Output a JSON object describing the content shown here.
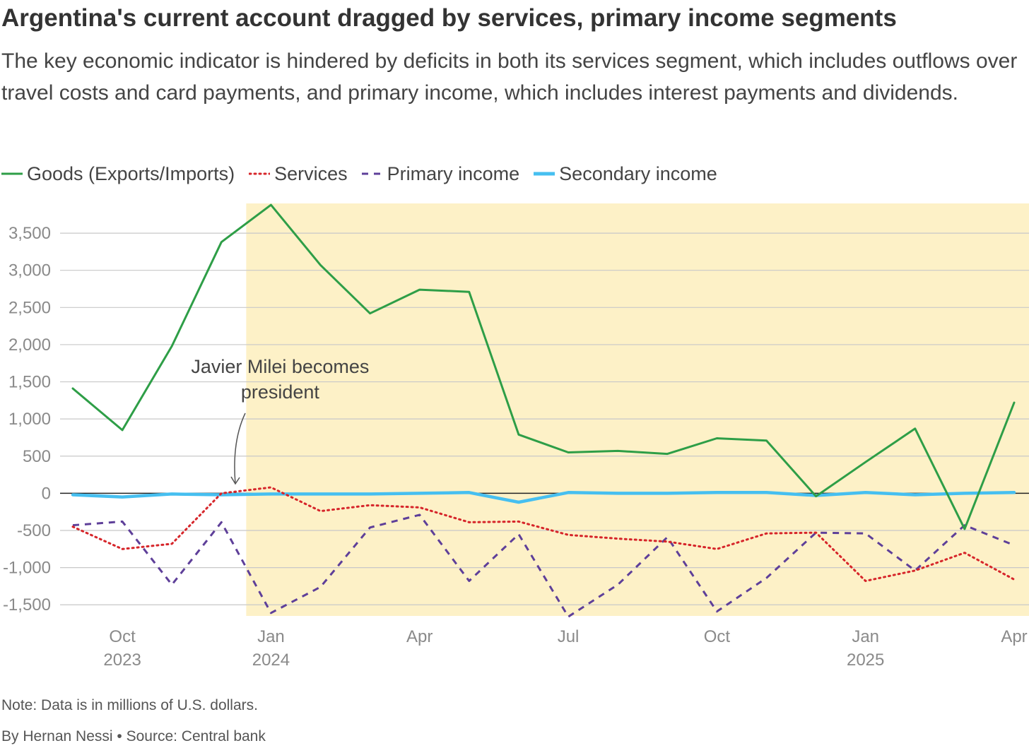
{
  "title": "Argentina's current account dragged by services, primary income segments",
  "subtitle": "The key economic indicator is hindered by deficits in both its services segment, which includes outflows over travel costs and card payments, and primary income, which includes interest payments and dividends.",
  "note": "Note: Data is in millions of U.S. dollars.",
  "byline": "By Hernan Nessi • Source: Central bank",
  "colors": {
    "goods": "#2e9e47",
    "services": "#d6252a",
    "primary": "#5e3f99",
    "secondary": "#46bff0",
    "highlight": "#fdf1c7",
    "grid": "#c8c8c8"
  },
  "chart_data": {
    "type": "line",
    "x": [
      "2023-09",
      "2023-10",
      "2023-11",
      "2023-12",
      "2024-01",
      "2024-02",
      "2024-03",
      "2024-04",
      "2024-05",
      "2024-06",
      "2024-07",
      "2024-08",
      "2024-09",
      "2024-10",
      "2024-11",
      "2024-12",
      "2025-01",
      "2025-02",
      "2025-03",
      "2025-04"
    ],
    "ylim": [
      -1650,
      3900
    ],
    "yticks": [
      -1500,
      -1000,
      -500,
      0,
      500,
      1000,
      1500,
      2000,
      2500,
      3000,
      3500
    ],
    "ytick_labels": [
      "-1,500",
      "-1,000",
      "-500",
      "0",
      "500",
      "1,000",
      "1,500",
      "2,000",
      "2,500",
      "3,000",
      "3,500"
    ],
    "xticks": [
      {
        "x": "2023-10",
        "month": "Oct",
        "year": "2023"
      },
      {
        "x": "2024-01",
        "month": "Jan",
        "year": "2024"
      },
      {
        "x": "2024-04",
        "month": "Apr",
        "year": ""
      },
      {
        "x": "2024-07",
        "month": "Jul",
        "year": ""
      },
      {
        "x": "2024-10",
        "month": "Oct",
        "year": ""
      },
      {
        "x": "2025-01",
        "month": "Jan",
        "year": "2025"
      },
      {
        "x": "2025-04",
        "month": "Apr",
        "year": ""
      }
    ],
    "highlight_from": "2023-12",
    "grid": true,
    "legend_position": "top-left",
    "series": [
      {
        "key": "goods",
        "name": "Goods (Exports/Imports)",
        "style": "solid",
        "values": [
          1410,
          850,
          1980,
          3380,
          3880,
          3070,
          2420,
          2740,
          2710,
          790,
          550,
          570,
          530,
          740,
          710,
          -40,
          420,
          870,
          -480,
          1220
        ]
      },
      {
        "key": "services",
        "name": "Services",
        "style": "dotted",
        "values": [
          -450,
          -750,
          -680,
          0,
          80,
          -240,
          -160,
          -190,
          -390,
          -380,
          -560,
          -610,
          -650,
          -750,
          -540,
          -530,
          -1180,
          -1040,
          -800,
          -1160
        ]
      },
      {
        "key": "primary",
        "name": "Primary income",
        "style": "dashed",
        "values": [
          -430,
          -380,
          -1230,
          -390,
          -1610,
          -1260,
          -460,
          -290,
          -1180,
          -550,
          -1660,
          -1230,
          -590,
          -1590,
          -1140,
          -530,
          -540,
          -1040,
          -430,
          -700
        ]
      },
      {
        "key": "secondary",
        "name": "Secondary income",
        "style": "thick",
        "values": [
          -20,
          -50,
          -10,
          -20,
          -10,
          -10,
          -10,
          0,
          10,
          -120,
          10,
          0,
          0,
          10,
          10,
          -30,
          10,
          -20,
          0,
          10
        ]
      }
    ],
    "annotations": [
      {
        "x": "2023-12",
        "line1": "Javier Milei becomes",
        "line2": "president"
      }
    ]
  }
}
